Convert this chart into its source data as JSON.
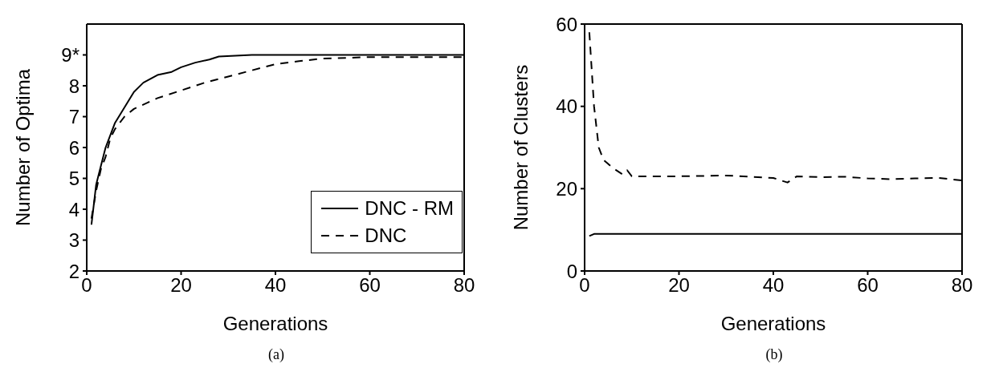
{
  "chart_data": [
    {
      "type": "line",
      "xlabel": "Generations",
      "ylabel": "Number of Optima",
      "annotations": [
        "(a)"
      ],
      "xlim": [
        0,
        80
      ],
      "xticks": [
        0,
        20,
        40,
        60,
        80
      ],
      "ylim": [
        2,
        10
      ],
      "yticks": [
        2,
        3,
        4,
        5,
        6,
        7,
        8,
        {
          "value": 9,
          "label": "9*"
        }
      ],
      "legend": "bottom right",
      "series": [
        {
          "name": "DNC - RM",
          "color": "#000000",
          "line_style": "solid",
          "x": [
            1,
            2,
            3,
            4,
            5,
            6,
            8,
            10,
            12,
            15,
            18,
            20,
            23,
            26,
            28,
            35,
            80
          ],
          "values": [
            3.5,
            4.8,
            5.4,
            6.0,
            6.4,
            6.8,
            7.3,
            7.8,
            8.1,
            8.35,
            8.45,
            8.6,
            8.75,
            8.85,
            8.95,
            9,
            9
          ]
        },
        {
          "name": "DNC",
          "color": "#000000",
          "line_style": "dashed",
          "x": [
            1,
            2,
            3,
            4,
            5,
            6,
            8,
            10,
            15,
            20,
            25,
            30,
            35,
            40,
            45,
            50,
            60,
            80
          ],
          "values": [
            3.7,
            4.6,
            5.3,
            5.7,
            6.3,
            6.6,
            7.0,
            7.25,
            7.6,
            7.85,
            8.1,
            8.3,
            8.5,
            8.7,
            8.8,
            8.88,
            8.93,
            8.93
          ]
        }
      ]
    },
    {
      "type": "line",
      "xlabel": "Generations",
      "ylabel": "Number of Clusters",
      "annotations": [
        "(b)"
      ],
      "xlim": [
        0,
        80
      ],
      "xticks": [
        0,
        20,
        40,
        60,
        80
      ],
      "ylim": [
        0,
        60
      ],
      "yticks": [
        0,
        20,
        40,
        60
      ],
      "legend": false,
      "series": [
        {
          "color": "#000000",
          "line_style": "solid",
          "x": [
            1,
            2,
            3,
            80
          ],
          "values": [
            8.5,
            9,
            9,
            9
          ]
        },
        {
          "color": "#000000",
          "line_style": "dashed",
          "x": [
            1,
            2,
            3,
            4,
            6,
            8,
            9,
            10,
            13,
            17,
            20,
            30,
            40,
            43,
            45,
            50,
            55,
            60,
            65,
            70,
            75,
            80
          ],
          "values": [
            58,
            40,
            30,
            27,
            25,
            23.5,
            24.5,
            23,
            23,
            23,
            23,
            23.2,
            22.6,
            21.5,
            23,
            22.8,
            22.9,
            22.5,
            22.3,
            22.5,
            22.6,
            22
          ]
        }
      ]
    }
  ]
}
